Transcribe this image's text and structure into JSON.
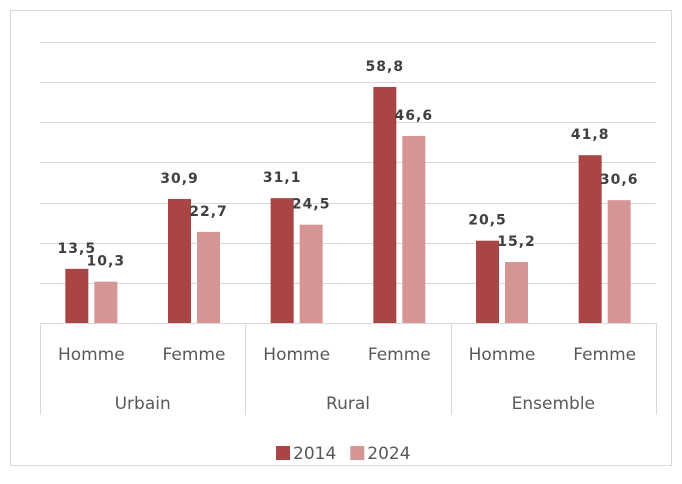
{
  "chart_data": {
    "type": "bar",
    "categories": [
      "Homme",
      "Femme",
      "Homme",
      "Femme",
      "Homme",
      "Femme"
    ],
    "groups": [
      "Urbain",
      "Rural",
      "Ensemble"
    ],
    "series": [
      {
        "name": "2014",
        "color": "#a94545",
        "values": [
          13.5,
          30.9,
          31.1,
          58.8,
          20.5,
          41.8
        ],
        "value_labels": [
          "13,5",
          "30,9",
          "31,1",
          "58,8",
          "20,5",
          "41,8"
        ]
      },
      {
        "name": "2024",
        "color": "#d59594",
        "values": [
          10.3,
          22.7,
          24.5,
          46.6,
          15.2,
          30.6
        ],
        "value_labels": [
          "10,3",
          "22,7",
          "24,5",
          "46,6",
          "15,2",
          "30,6"
        ]
      }
    ],
    "ylim": [
      0,
      70
    ],
    "yticks": [
      0,
      10,
      20,
      30,
      40,
      50,
      60,
      70
    ],
    "grid": true,
    "legend": "bottom"
  }
}
